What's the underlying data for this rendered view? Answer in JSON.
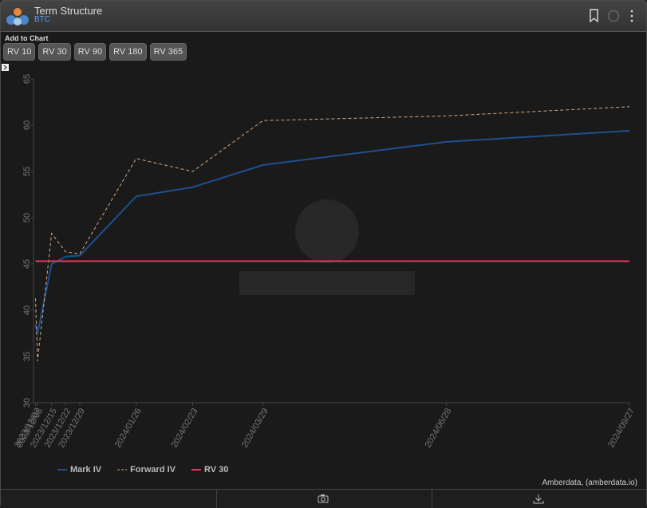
{
  "header": {
    "title": "Term Structure",
    "subtitle": "BTC"
  },
  "toolbar": {
    "label": "Add to Chart",
    "buttons": [
      "RV 10",
      "RV 30",
      "RV 90",
      "RV 180",
      "RV 365"
    ]
  },
  "footer": {
    "credit": "Amberdata, (amberdata.io)"
  },
  "chart_data": {
    "type": "line",
    "x": [
      "2023/12/07",
      "2023/12/08",
      "2023/12/15",
      "2023/12/22",
      "2023/12/29",
      "2024/01/26",
      "2024/02/23",
      "2024/03/29",
      "2024/06/28",
      "2024/09/27"
    ],
    "xlim": [
      "2023/12/06",
      "2024/09/27"
    ],
    "ylim": [
      30,
      65
    ],
    "yticks": [
      30,
      35,
      40,
      45,
      50,
      55,
      60,
      65
    ],
    "legend": "bottom-left",
    "series": [
      {
        "name": "Mark IV",
        "color": "#1f4f8f",
        "dash": false,
        "values": [
          38.5,
          37.5,
          45.0,
          45.8,
          45.9,
          52.3,
          53.3,
          55.7,
          58.2,
          59.4
        ]
      },
      {
        "name": "Forward IV",
        "color": "#d6a77c",
        "dash": true,
        "values": [
          41.3,
          34.5,
          48.3,
          46.3,
          46.1,
          56.4,
          55.0,
          60.5,
          61.0,
          62.0
        ]
      },
      {
        "name": "RV 30",
        "color": "#e8355b",
        "dash": false,
        "values": [
          45.3,
          45.3,
          45.3,
          45.3,
          45.3,
          45.3,
          45.3,
          45.3,
          45.3,
          45.3
        ]
      }
    ]
  }
}
